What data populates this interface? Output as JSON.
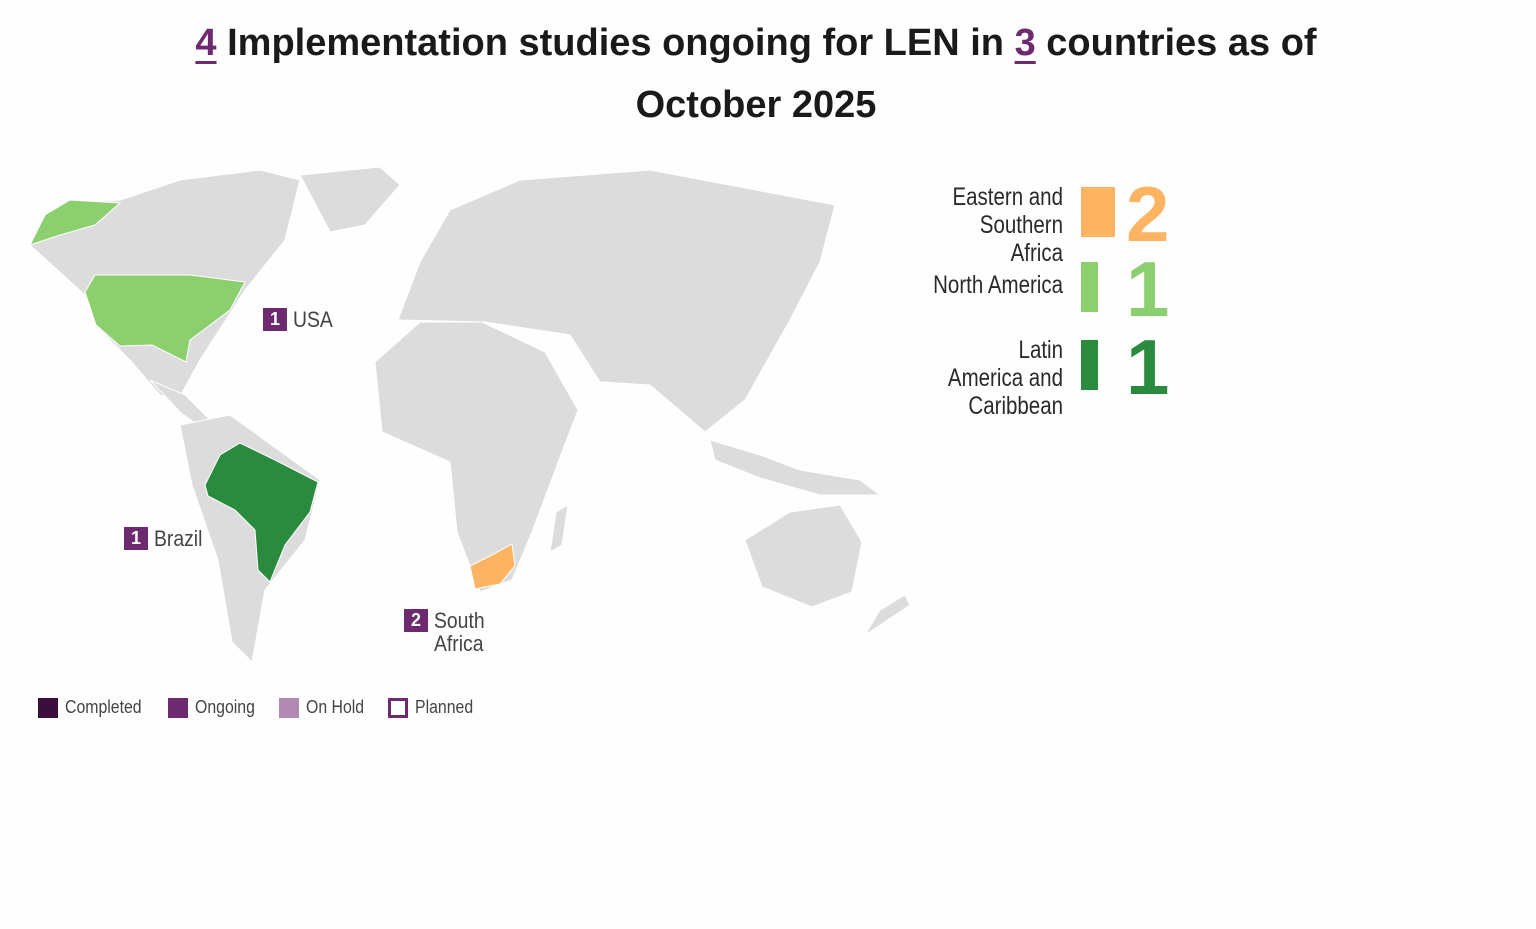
{
  "title": {
    "study_count": 4,
    "middle": "Implementation studies ongoing for LEN in",
    "country_count": 3,
    "end": "countries as of October 2025",
    "accent": "#6e2a6f"
  },
  "regions": [
    {
      "name": "Eastern and Southern Africa",
      "count": 2,
      "color": "#fdb462"
    },
    {
      "name": "North America",
      "count": 1,
      "color": "#8ccf6e"
    },
    {
      "name": "Latin America and Caribbean",
      "count": 1,
      "color": "#2a8a3e"
    }
  ],
  "countries": [
    {
      "name": "USA",
      "count": 1,
      "color": "#8ccf6e"
    },
    {
      "name": "Brazil",
      "count": 1,
      "color": "#2a8a3e"
    },
    {
      "name": "South Africa",
      "count": 2,
      "color": "#fdb462"
    }
  ],
  "badge_color": "#6e2a6f",
  "legend": [
    {
      "label": "Completed",
      "color": "#3b0f3c"
    },
    {
      "label": "Ongoing",
      "color": "#6e2a6f"
    },
    {
      "label": "On Hold",
      "color": "#b289b3"
    },
    {
      "label": "Planned",
      "color": "#6e2a6f",
      "hollow": true
    }
  ]
}
